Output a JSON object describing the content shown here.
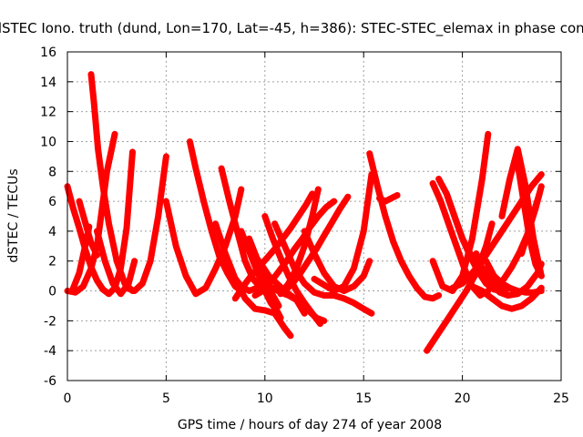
{
  "chart_data": {
    "type": "line",
    "title": "dSTEC Iono. truth (dund, Lon=170, Lat=-45, h=386): STEC-STEC_elemax in phase cont",
    "xlabel": "GPS time / hours of day 274 of year 2008",
    "ylabel": "dSTEC  / TECUs",
    "xlim": [
      0,
      25
    ],
    "ylim": [
      -6,
      16
    ],
    "xticks": [
      0,
      5,
      10,
      15,
      20,
      25
    ],
    "yticks": [
      -6,
      -4,
      -2,
      0,
      2,
      4,
      6,
      8,
      10,
      12,
      14,
      16
    ],
    "grid": true,
    "color": "#ff0000",
    "series": [
      {
        "x": [
          0.0,
          0.3,
          0.6,
          0.9,
          1.2,
          1.5,
          1.8,
          2.1,
          2.4,
          2.7,
          3.0,
          3.3
        ],
        "y": [
          7.0,
          5.5,
          4.2,
          2.8,
          1.6,
          0.7,
          0.1,
          -0.2,
          0.2,
          1.5,
          4.2,
          9.3
        ]
      },
      {
        "x": [
          0.3,
          0.6,
          0.9,
          1.1
        ],
        "y": [
          0.2,
          1.2,
          3.0,
          4.3
        ]
      },
      {
        "x": [
          0.6,
          0.9,
          1.2,
          1.5
        ],
        "y": [
          6.0,
          4.6,
          3.2,
          2.4
        ]
      },
      {
        "x": [
          0.0,
          0.4,
          0.8,
          1.2,
          1.5,
          1.7,
          2.0,
          2.4
        ],
        "y": [
          0.0,
          -0.1,
          0.3,
          1.5,
          3.0,
          5.0,
          8.0,
          10.5
        ]
      },
      {
        "x": [
          1.2,
          1.35,
          1.55,
          1.8,
          2.1,
          2.5,
          2.9,
          3.3
        ],
        "y": [
          14.5,
          12.5,
          9.5,
          7.0,
          4.5,
          2.0,
          0.5,
          0.0
        ]
      },
      {
        "x": [
          1.5,
          1.9,
          2.3,
          2.7,
          3.1,
          3.4
        ],
        "y": [
          4.0,
          2.0,
          0.5,
          -0.2,
          0.5,
          2.0
        ]
      },
      {
        "x": [
          3.0,
          3.4,
          3.8,
          4.2,
          4.6,
          5.0
        ],
        "y": [
          0.2,
          0.0,
          0.5,
          2.0,
          5.0,
          9.0
        ]
      },
      {
        "x": [
          5.0,
          5.5,
          6.0,
          6.5,
          7.0,
          7.5,
          8.0,
          8.5,
          8.8
        ],
        "y": [
          6.0,
          3.0,
          1.0,
          -0.2,
          0.2,
          1.5,
          3.0,
          5.0,
          6.8
        ]
      },
      {
        "x": [
          6.2,
          6.5,
          6.9,
          7.3,
          7.7,
          8.1,
          8.5,
          8.8
        ],
        "y": [
          10.0,
          8.2,
          6.0,
          4.0,
          2.3,
          1.2,
          0.3,
          0.0
        ]
      },
      {
        "x": [
          7.5,
          8.0,
          8.5,
          9.0,
          9.5,
          10.0,
          10.5,
          11.0,
          11.3
        ],
        "y": [
          4.5,
          2.5,
          0.8,
          -0.5,
          -1.2,
          -1.3,
          -1.5,
          -2.5,
          -3.0
        ]
      },
      {
        "x": [
          7.8,
          8.2,
          8.6,
          9.0,
          9.4,
          9.8,
          10.2
        ],
        "y": [
          8.2,
          6.0,
          4.0,
          2.0,
          0.8,
          0.2,
          0.0
        ]
      },
      {
        "x": [
          8.0,
          8.4,
          8.8,
          9.2,
          9.6,
          10.0,
          10.4,
          10.8,
          11.2,
          11.6,
          12.0
        ],
        "y": [
          2.0,
          1.0,
          0.3,
          0.0,
          0.2,
          0.3,
          0.2,
          -0.1,
          -0.3,
          -0.6,
          -1.5
        ]
      },
      {
        "x": [
          9.0,
          9.4,
          9.8,
          10.2,
          10.6,
          11.0,
          11.4,
          11.8,
          12.2,
          12.6,
          13.0
        ],
        "y": [
          3.0,
          2.5,
          1.8,
          1.0,
          0.5,
          0.0,
          -0.4,
          -0.8,
          -1.3,
          -1.8,
          -2.0
        ]
      },
      {
        "x": [
          9.2,
          9.5,
          9.8,
          10.1,
          10.4,
          10.7
        ],
        "y": [
          3.5,
          2.5,
          1.5,
          0.5,
          -0.3,
          -1.0
        ]
      },
      {
        "x": [
          8.8,
          9.1,
          9.4,
          9.7,
          10.0,
          10.3,
          10.6,
          10.8
        ],
        "y": [
          4.0,
          3.0,
          2.0,
          1.0,
          0.0,
          -0.8,
          -1.3,
          -1.8
        ]
      },
      {
        "x": [
          10.0,
          10.4,
          10.8,
          11.2,
          11.6,
          12.0,
          12.4,
          12.8
        ],
        "y": [
          5.0,
          3.5,
          2.2,
          1.0,
          0.0,
          -0.8,
          -1.5,
          -2.2
        ]
      },
      {
        "x": [
          10.5,
          11.0,
          11.5,
          12.0,
          12.5,
          13.0,
          13.5,
          14.0,
          14.5,
          15.0,
          15.4
        ],
        "y": [
          4.5,
          3.0,
          1.5,
          0.5,
          -0.1,
          -0.3,
          -0.3,
          -0.5,
          -0.8,
          -1.2,
          -1.5
        ]
      },
      {
        "x": [
          8.5,
          8.9,
          9.3,
          9.7,
          10.1,
          10.5,
          10.9,
          11.3,
          11.7,
          12.1,
          12.4
        ],
        "y": [
          -0.5,
          0.3,
          1.0,
          1.6,
          2.2,
          2.8,
          3.5,
          4.2,
          5.0,
          5.8,
          6.5
        ]
      },
      {
        "x": [
          9.5,
          9.9,
          10.3,
          10.7,
          11.1,
          11.5,
          11.9,
          12.3,
          12.7,
          13.1,
          13.5
        ],
        "y": [
          -0.3,
          0.0,
          0.6,
          1.3,
          2.0,
          2.8,
          3.5,
          4.3,
          5.0,
          5.6,
          6.0
        ]
      },
      {
        "x": [
          11.0,
          11.4,
          11.8,
          12.2,
          12.6,
          13.0,
          13.4,
          13.8,
          14.2
        ],
        "y": [
          0.0,
          0.5,
          1.2,
          2.0,
          2.8,
          3.7,
          4.6,
          5.5,
          6.3
        ]
      },
      {
        "x": [
          10.8,
          11.2,
          11.6,
          12.0,
          12.4,
          12.7
        ],
        "y": [
          -0.2,
          0.5,
          1.5,
          3.0,
          5.0,
          6.8
        ]
      },
      {
        "x": [
          12.0,
          12.5,
          13.0,
          13.5,
          14.0,
          14.5,
          15.0,
          15.3
        ],
        "y": [
          4.0,
          2.5,
          1.2,
          0.3,
          0.0,
          0.3,
          1.0,
          2.0
        ]
      },
      {
        "x": [
          12.5,
          13.0,
          13.5,
          14.0,
          14.5,
          15.0,
          15.4
        ],
        "y": [
          0.8,
          0.4,
          0.0,
          0.3,
          1.5,
          4.0,
          7.8
        ]
      },
      {
        "x": [
          15.3,
          15.7,
          16.1,
          16.5,
          16.9,
          17.3,
          17.7,
          18.1,
          18.5,
          18.8
        ],
        "y": [
          9.2,
          7.0,
          5.0,
          3.3,
          2.0,
          1.0,
          0.2,
          -0.4,
          -0.5,
          -0.3
        ]
      },
      {
        "x": [
          15.8,
          16.1,
          16.4,
          16.7
        ],
        "y": [
          6.2,
          6.0,
          6.2,
          6.4
        ]
      },
      {
        "x": [
          18.2,
          18.7,
          19.2,
          19.7,
          20.2,
          20.7,
          21.2,
          21.5
        ],
        "y": [
          -4.0,
          -3.0,
          -2.0,
          -1.0,
          0.0,
          1.2,
          3.0,
          4.5
        ]
      },
      {
        "x": [
          18.5,
          18.9,
          19.3,
          19.7,
          20.1,
          20.5,
          20.9,
          21.3
        ],
        "y": [
          7.2,
          6.0,
          4.5,
          3.0,
          1.5,
          0.3,
          -0.3,
          0.0
        ]
      },
      {
        "x": [
          18.8,
          19.2,
          19.6,
          20.0,
          20.4,
          20.8,
          21.2,
          21.6,
          22.0,
          22.4
        ],
        "y": [
          7.5,
          6.5,
          5.0,
          3.5,
          2.3,
          1.3,
          0.5,
          0.1,
          0.0,
          0.2
        ]
      },
      {
        "x": [
          19.2,
          19.6,
          20.0,
          20.4,
          20.8,
          21.2,
          21.6,
          21.9
        ],
        "y": [
          6.5,
          5.0,
          3.5,
          2.5,
          1.8,
          1.3,
          0.8,
          0.3
        ]
      },
      {
        "x": [
          18.5,
          19.0,
          19.5,
          20.0,
          20.5,
          21.0,
          21.3
        ],
        "y": [
          2.0,
          0.3,
          0.0,
          1.0,
          3.5,
          7.5,
          10.5
        ]
      },
      {
        "x": [
          19.5,
          20.0,
          20.5,
          21.0,
          21.5,
          22.0,
          22.5,
          23.0,
          23.5,
          24.0
        ],
        "y": [
          0.2,
          0.5,
          1.2,
          2.0,
          3.0,
          4.0,
          5.0,
          6.0,
          7.0,
          7.8
        ]
      },
      {
        "x": [
          20.5,
          21.0,
          21.5,
          22.0,
          22.5,
          23.0,
          23.5,
          24.0
        ],
        "y": [
          0.3,
          0.0,
          -0.5,
          -1.0,
          -1.2,
          -1.0,
          -0.5,
          0.2
        ]
      },
      {
        "x": [
          20.7,
          21.1,
          21.5,
          21.9,
          22.3,
          22.8,
          23.3,
          23.8,
          24.0
        ],
        "y": [
          2.5,
          1.2,
          0.4,
          -0.1,
          -0.3,
          -0.2,
          0.3,
          1.2,
          1.8
        ]
      },
      {
        "x": [
          21.2,
          21.6,
          22.0,
          22.4,
          22.8,
          23.2,
          23.6,
          24.0
        ],
        "y": [
          2.0,
          1.0,
          0.5,
          0.2,
          0.0,
          -0.1,
          -0.1,
          0.0
        ]
      },
      {
        "x": [
          21.7,
          22.1,
          22.5,
          22.9,
          23.3,
          23.7,
          24.0
        ],
        "y": [
          0.3,
          0.8,
          1.6,
          2.6,
          3.8,
          5.5,
          7.0
        ]
      },
      {
        "x": [
          22.0,
          22.4,
          22.8,
          23.2,
          23.6,
          24.0
        ],
        "y": [
          5.0,
          7.5,
          9.5,
          7.0,
          3.5,
          1.0
        ]
      },
      {
        "x": [
          22.8,
          23.1,
          23.4,
          23.7,
          24.0
        ],
        "y": [
          8.5,
          6.0,
          3.5,
          1.8,
          1.0
        ]
      },
      {
        "x": [
          23.0,
          23.3,
          23.6,
          23.9
        ],
        "y": [
          2.5,
          3.8,
          5.2,
          6.5
        ]
      }
    ]
  }
}
